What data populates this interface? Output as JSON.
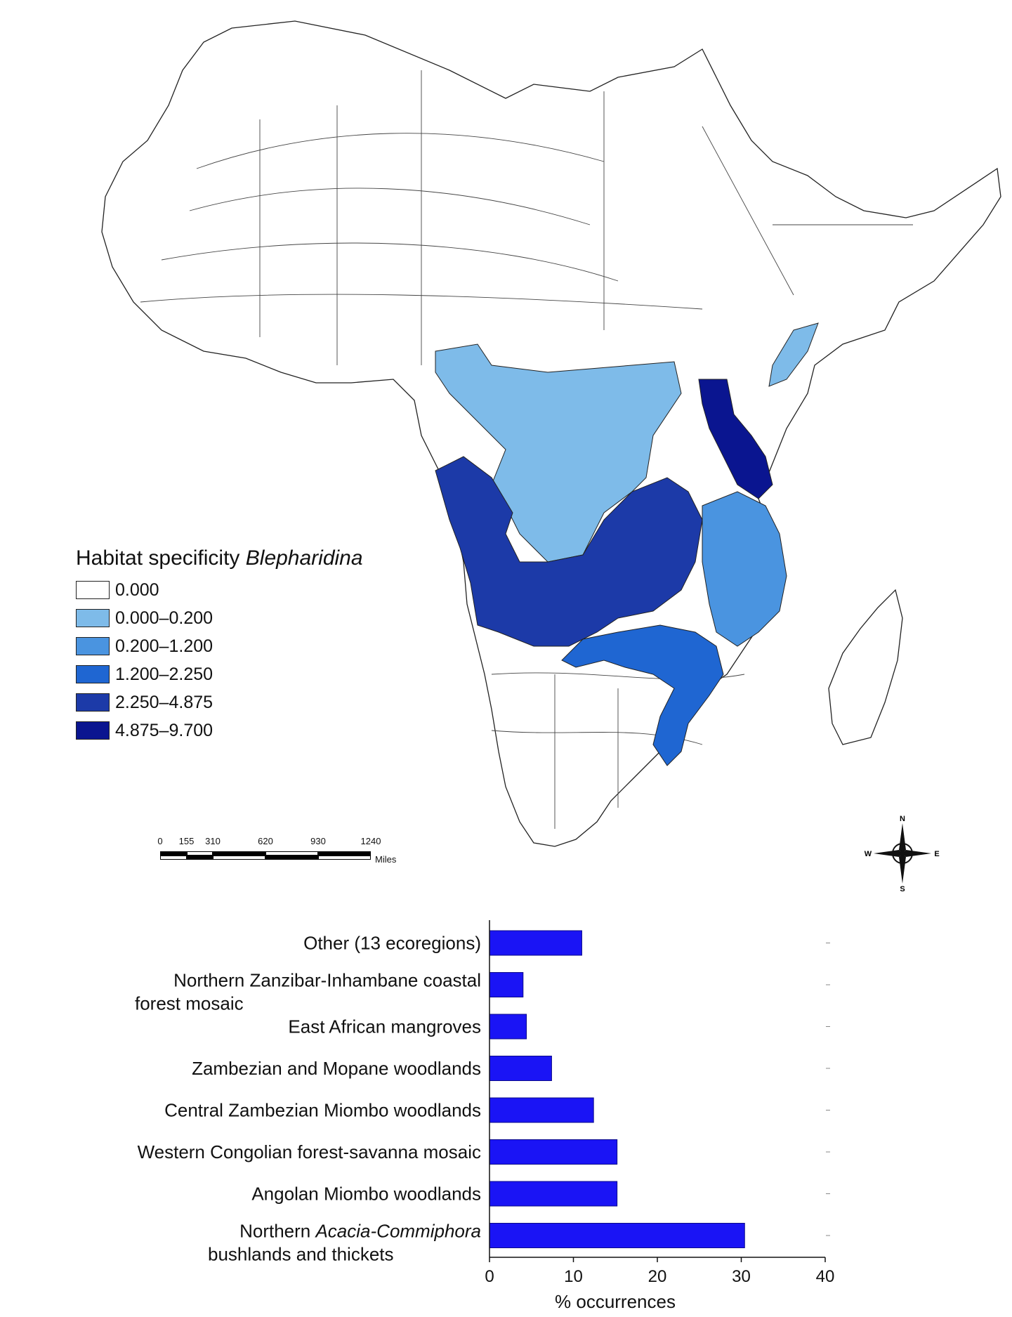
{
  "legend": {
    "title_prefix": "Habitat specificity ",
    "title_genus": "Blepharidina",
    "classes": [
      {
        "label": "0.000",
        "color": "#ffffff"
      },
      {
        "label": "0.000–0.200",
        "color": "#7ebbe9"
      },
      {
        "label": "0.200–1.200",
        "color": "#4a94e0"
      },
      {
        "label": "1.200–2.250",
        "color": "#1f66d2"
      },
      {
        "label": "2.250–4.875",
        "color": "#1c3aa8"
      },
      {
        "label": "4.875–9.700",
        "color": "#0a1590"
      }
    ]
  },
  "scalebar": {
    "ticks": [
      "0",
      "155",
      "310",
      "620",
      "930",
      "1240"
    ],
    "units": "Miles"
  },
  "compass": {
    "n": "N",
    "s": "S",
    "e": "E",
    "w": "W"
  },
  "chart_data": {
    "type": "bar",
    "orientation": "horizontal",
    "categories": [
      "Other (13 ecoregions)",
      "Northern Zanzibar-Inhambane coastal forest mosaic",
      "East African mangroves",
      "Zambezian and Mopane woodlands",
      "Central Zambezian Miombo woodlands",
      "Western Congolian forest-savanna mosaic",
      "Angolan Miombo woodlands",
      "Northern Acacia-Commiphora bushlands and thickets"
    ],
    "category_lines": [
      [
        {
          "t": "Other (13 ecoregions)",
          "i": false
        }
      ],
      [
        {
          "t": "Northern Zanzibar-Inhambane coastal",
          "i": false
        }
      ],
      [
        {
          "t": "East African mangroves",
          "i": false
        }
      ],
      [
        {
          "t": "Zambezian and Mopane woodlands",
          "i": false
        }
      ],
      [
        {
          "t": "Central Zambezian Miombo woodlands",
          "i": false
        }
      ],
      [
        {
          "t": "Western Congolian forest-savanna mosaic",
          "i": false
        }
      ],
      [
        {
          "t": "Angolan Miombo woodlands",
          "i": false
        }
      ],
      [
        {
          "t": "Northern ",
          "i": false
        },
        {
          "t": "Acacia-Commiphora",
          "i": true
        }
      ]
    ],
    "category_second_lines": [
      "",
      "forest mosaic",
      "",
      "",
      "",
      "",
      "",
      "bushlands and thickets"
    ],
    "values": [
      11,
      4,
      4.4,
      7.4,
      12.4,
      15.2,
      15.2,
      30.4
    ],
    "xlabel": "% occurrences",
    "xlim": [
      0,
      40
    ],
    "xticks": [
      0,
      10,
      20,
      30,
      40
    ],
    "bar_color": "#1a14f5"
  }
}
